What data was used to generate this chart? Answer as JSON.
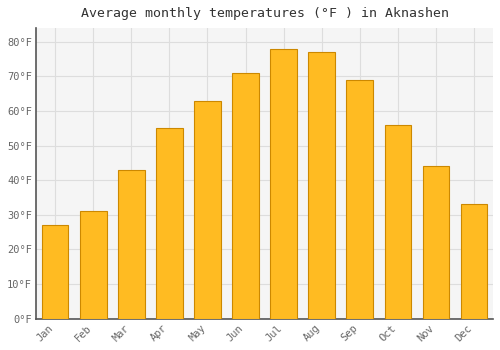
{
  "title": "Average monthly temperatures (°F ) in Aknashen",
  "months": [
    "Jan",
    "Feb",
    "Mar",
    "Apr",
    "May",
    "Jun",
    "Jul",
    "Aug",
    "Sep",
    "Oct",
    "Nov",
    "Dec"
  ],
  "values": [
    27,
    31,
    43,
    55,
    63,
    71,
    78,
    77,
    69,
    56,
    44,
    33
  ],
  "bar_color": "#FFBB22",
  "bar_edge_color": "#CC8800",
  "background_color": "#FFFFFF",
  "plot_bg_color": "#F5F5F5",
  "grid_color": "#DDDDDD",
  "ytick_labels": [
    "0°F",
    "10°F",
    "20°F",
    "30°F",
    "40°F",
    "50°F",
    "60°F",
    "70°F",
    "80°F"
  ],
  "ytick_values": [
    0,
    10,
    20,
    30,
    40,
    50,
    60,
    70,
    80
  ],
  "ylim": [
    0,
    84
  ],
  "title_fontsize": 9.5,
  "tick_fontsize": 7.5,
  "font_family": "monospace",
  "left_spine_color": "#555555",
  "bottom_spine_color": "#555555"
}
